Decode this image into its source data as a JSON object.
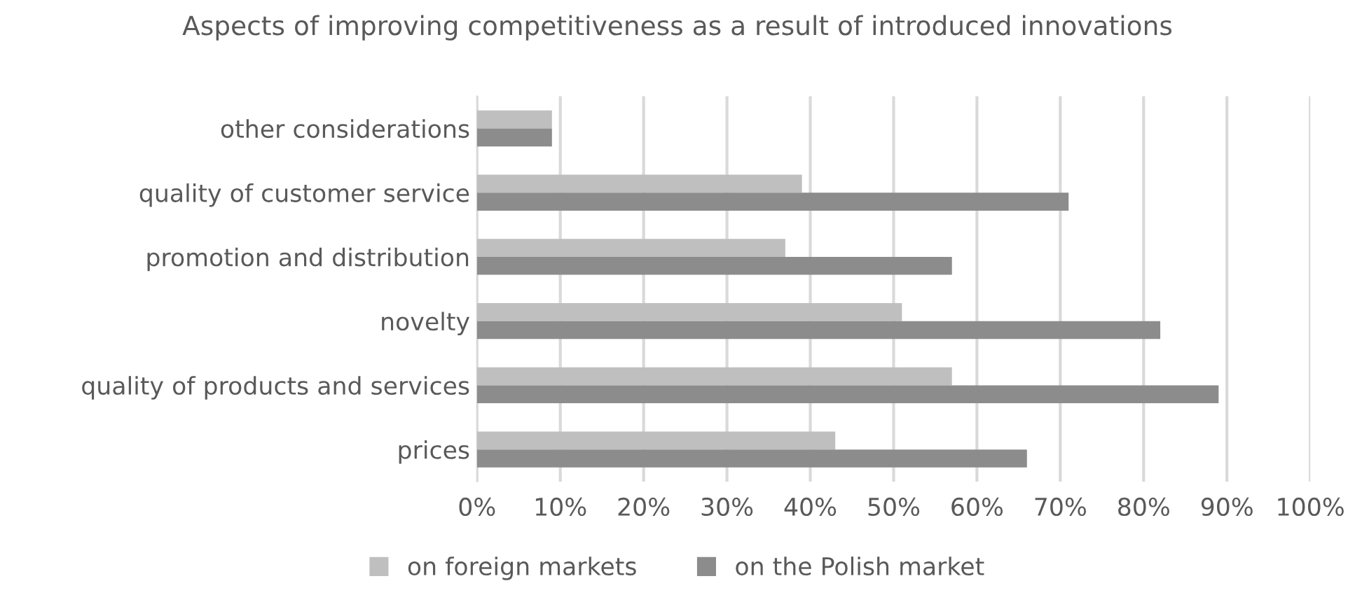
{
  "chart_data": {
    "type": "bar",
    "orientation": "horizontal",
    "title": "Aspects of improving competitiveness as a result of introduced innovations",
    "categories": [
      "other considerations",
      "quality of customer service",
      "promotion and distribution",
      "novelty",
      "quality of products and services",
      "prices"
    ],
    "series": [
      {
        "name": "on foreign markets",
        "color": "#bfbfbf",
        "values": [
          9,
          39,
          37,
          51,
          57,
          43
        ]
      },
      {
        "name": "on the Polish market",
        "color": "#8c8c8c",
        "values": [
          9,
          71,
          57,
          82,
          89,
          66
        ]
      }
    ],
    "xlim": [
      0,
      100
    ],
    "xticks": [
      {
        "value": 0,
        "label": "0%"
      },
      {
        "value": 10,
        "label": "10%"
      },
      {
        "value": 20,
        "label": "20%"
      },
      {
        "value": 30,
        "label": "30%"
      },
      {
        "value": 40,
        "label": "40%"
      },
      {
        "value": 50,
        "label": "50%"
      },
      {
        "value": 60,
        "label": "60%"
      },
      {
        "value": 70,
        "label": "70%"
      },
      {
        "value": 80,
        "label": "80%"
      },
      {
        "value": 90,
        "label": "90%"
      },
      {
        "value": 100,
        "label": "100%"
      }
    ],
    "grid": "x",
    "legend": "bottom"
  }
}
